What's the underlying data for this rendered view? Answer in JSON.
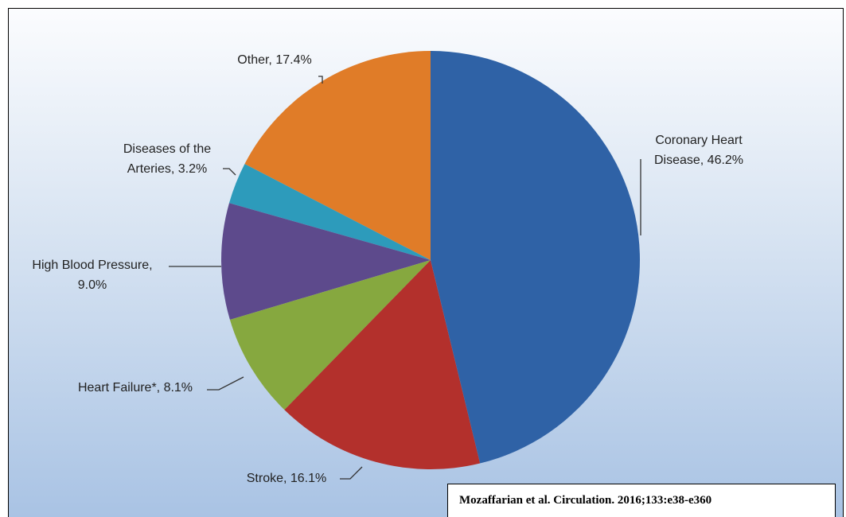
{
  "chart_data": {
    "type": "pie",
    "categories": [
      "Coronary Heart Disease, 46.2%",
      "Stroke, 16.1%",
      "Heart Failure*, 8.1%",
      "High Blood Pressure, 9.0%",
      "Diseases of the Arteries, 3.2%",
      "Other, 17.4%"
    ],
    "values": [
      46.2,
      16.1,
      8.1,
      9.0,
      3.2,
      17.4
    ],
    "colors": [
      "#2f62a6",
      "#b3302c",
      "#86a83f",
      "#5d4a8c",
      "#2d9bbb",
      "#e07c28"
    ],
    "source": "Mozaffarian et al. Circulation. 2016;133:e38-e360"
  }
}
